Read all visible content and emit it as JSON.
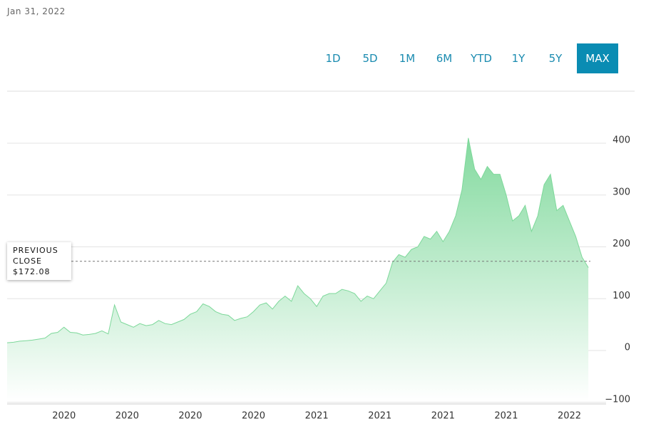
{
  "date": "Jan 31, 2022",
  "range_buttons": [
    "1D",
    "5D",
    "1M",
    "6M",
    "YTD",
    "1Y",
    "5Y",
    "MAX"
  ],
  "selected_range": "MAX",
  "chart_data": {
    "type": "area",
    "color": "#7dd89a",
    "values": [
      15,
      16,
      18,
      19,
      20,
      22,
      24,
      33,
      35,
      45,
      35,
      34,
      30,
      31,
      33,
      38,
      32,
      88,
      55,
      50,
      45,
      52,
      48,
      50,
      58,
      52,
      50,
      55,
      60,
      70,
      75,
      90,
      85,
      75,
      70,
      68,
      58,
      62,
      65,
      75,
      88,
      92,
      80,
      95,
      105,
      95,
      125,
      110,
      100,
      85,
      105,
      110,
      110,
      118,
      115,
      110,
      95,
      105,
      100,
      115,
      130,
      170,
      185,
      180,
      195,
      200,
      220,
      215,
      230,
      210,
      230,
      260,
      310,
      410,
      350,
      330,
      355,
      340,
      340,
      300,
      250,
      260,
      280,
      230,
      260,
      320,
      340,
      270,
      280,
      250,
      220,
      180,
      160
    ],
    "categories": [
      null,
      null,
      null,
      null,
      null,
      null,
      null,
      null,
      null,
      "2020",
      null,
      null,
      null,
      null,
      null,
      null,
      null,
      null,
      null,
      "2020",
      null,
      null,
      null,
      null,
      null,
      null,
      null,
      null,
      null,
      "2020",
      null,
      null,
      null,
      null,
      null,
      null,
      null,
      null,
      null,
      "2020",
      null,
      null,
      null,
      null,
      null,
      null,
      null,
      null,
      null,
      "2021",
      null,
      null,
      null,
      null,
      null,
      null,
      null,
      null,
      null,
      "2021",
      null,
      null,
      null,
      null,
      null,
      null,
      null,
      null,
      null,
      "2021",
      null,
      null,
      null,
      null,
      null,
      null,
      null,
      null,
      null,
      "2021",
      null,
      null,
      null,
      null,
      null,
      null,
      null,
      null,
      null,
      "2022",
      null,
      null,
      null
    ],
    "ylim": [
      -100,
      440
    ],
    "yticks": [
      400,
      300,
      200,
      100,
      0,
      {
        "value": -100,
        "label": "−100"
      }
    ],
    "grid": true,
    "previous_close": 172.08,
    "previous_close_label": "PREVIOUS CLOSE",
    "previous_close_value_label": "$172.08"
  }
}
